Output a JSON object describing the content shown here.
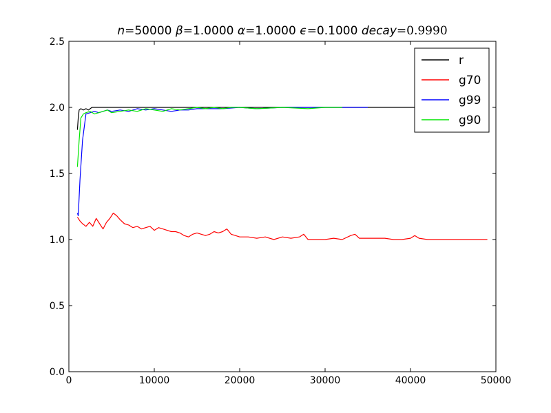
{
  "chart_data": {
    "type": "line",
    "title": {
      "parts": [
        {
          "text": "n",
          "italic": true
        },
        {
          "text": "=50000 ",
          "italic": false
        },
        {
          "text": "β",
          "italic": true
        },
        {
          "text": "=1.0000 ",
          "italic": false
        },
        {
          "text": "α",
          "italic": true
        },
        {
          "text": "=1.0000 ",
          "italic": false
        },
        {
          "text": "ϵ",
          "italic": true
        },
        {
          "text": "=0.1000 ",
          "italic": false
        },
        {
          "text": "decay",
          "italic": true
        },
        {
          "text": "=0.9990",
          "italic": false,
          "serif": true
        }
      ]
    },
    "xlabel": "",
    "ylabel": "",
    "xlim": [
      0,
      50000
    ],
    "ylim": [
      0.0,
      2.5
    ],
    "xticks": [
      0,
      10000,
      20000,
      30000,
      40000,
      50000
    ],
    "xtick_labels": [
      "0",
      "10000",
      "20000",
      "30000",
      "40000",
      "50000"
    ],
    "yticks": [
      0.0,
      0.5,
      1.0,
      1.5,
      2.0,
      2.5
    ],
    "ytick_labels": [
      "0.0",
      "0.5",
      "1.0",
      "1.5",
      "2.0",
      "2.5"
    ],
    "grid": false,
    "legend": "top-right",
    "series": [
      {
        "name": "r",
        "color": "#000000",
        "x": [
          1000,
          1100,
          1200,
          1400,
          1700,
          2000,
          2300,
          2500,
          2700,
          5000,
          10000,
          20000,
          30000,
          40000,
          49000
        ],
        "y": [
          1.83,
          1.92,
          1.98,
          1.99,
          1.98,
          1.99,
          1.98,
          1.99,
          2.0,
          2.0,
          2.0,
          2.0,
          2.0,
          2.0,
          2.0
        ]
      },
      {
        "name": "g70",
        "color": "#ff0000",
        "x": [
          1000,
          1300,
          1600,
          2000,
          2400,
          2800,
          3200,
          3600,
          4000,
          4400,
          4800,
          5200,
          5600,
          6000,
          6500,
          7000,
          7500,
          8000,
          8500,
          9000,
          9500,
          10000,
          10500,
          11000,
          11500,
          12000,
          12500,
          13000,
          13500,
          14000,
          14500,
          15000,
          15500,
          16000,
          16500,
          17000,
          17500,
          18000,
          18500,
          19000,
          19500,
          20000,
          21000,
          22000,
          23000,
          24000,
          25000,
          26000,
          27000,
          27500,
          28000,
          29000,
          30000,
          31000,
          32000,
          33000,
          33500,
          34000,
          35000,
          36000,
          37000,
          38000,
          39000,
          40000,
          40500,
          41000,
          42000,
          43000,
          44000,
          45000,
          47000,
          49000
        ],
        "y": [
          1.17,
          1.14,
          1.12,
          1.1,
          1.13,
          1.1,
          1.16,
          1.12,
          1.08,
          1.13,
          1.16,
          1.2,
          1.18,
          1.15,
          1.12,
          1.11,
          1.09,
          1.1,
          1.08,
          1.09,
          1.1,
          1.07,
          1.09,
          1.08,
          1.07,
          1.06,
          1.06,
          1.05,
          1.03,
          1.02,
          1.04,
          1.05,
          1.04,
          1.03,
          1.04,
          1.06,
          1.05,
          1.06,
          1.08,
          1.04,
          1.03,
          1.02,
          1.02,
          1.01,
          1.02,
          1.0,
          1.02,
          1.01,
          1.02,
          1.04,
          1.0,
          1.0,
          1.0,
          1.01,
          1.0,
          1.03,
          1.04,
          1.01,
          1.01,
          1.01,
          1.01,
          1.0,
          1.0,
          1.01,
          1.03,
          1.01,
          1.0,
          1.0,
          1.0,
          1.0,
          1.0,
          1.0
        ]
      },
      {
        "name": "g99",
        "color": "#0000ff",
        "x": [
          1000,
          1100,
          1300,
          1600,
          2000,
          2500,
          3000,
          3500,
          4000,
          4500,
          5000,
          6000,
          7000,
          8000,
          9000,
          10000,
          11000,
          12000,
          13000,
          14000,
          15000,
          16000,
          17000,
          18000,
          20000,
          22000,
          25000,
          27000,
          30000,
          33000,
          35000
        ],
        "y": [
          1.2,
          1.18,
          1.45,
          1.75,
          1.95,
          1.96,
          1.97,
          1.96,
          1.97,
          1.98,
          1.97,
          1.98,
          1.97,
          1.99,
          1.98,
          1.99,
          1.98,
          1.97,
          1.98,
          1.98,
          1.99,
          1.99,
          1.99,
          1.99,
          2.0,
          1.99,
          2.0,
          2.0,
          2.0,
          2.0,
          2.0
        ]
      },
      {
        "name": "g90",
        "color": "#00e600",
        "x": [
          1000,
          1200,
          1400,
          1700,
          2000,
          2500,
          3000,
          3500,
          4000,
          4500,
          5000,
          6000,
          7000,
          8000,
          9000,
          10000,
          11000,
          12000,
          13000,
          14000,
          15000,
          16000,
          17000,
          18000,
          19000,
          20000,
          22000,
          25000,
          28000,
          30000,
          32000
        ],
        "y": [
          1.55,
          1.75,
          1.92,
          1.95,
          1.96,
          1.97,
          1.95,
          1.96,
          1.97,
          1.98,
          1.96,
          1.97,
          1.98,
          1.97,
          1.99,
          1.98,
          1.97,
          1.99,
          1.98,
          1.99,
          2.0,
          1.99,
          2.0,
          1.99,
          2.0,
          2.0,
          1.99,
          2.0,
          1.99,
          2.0,
          2.0
        ]
      }
    ]
  }
}
